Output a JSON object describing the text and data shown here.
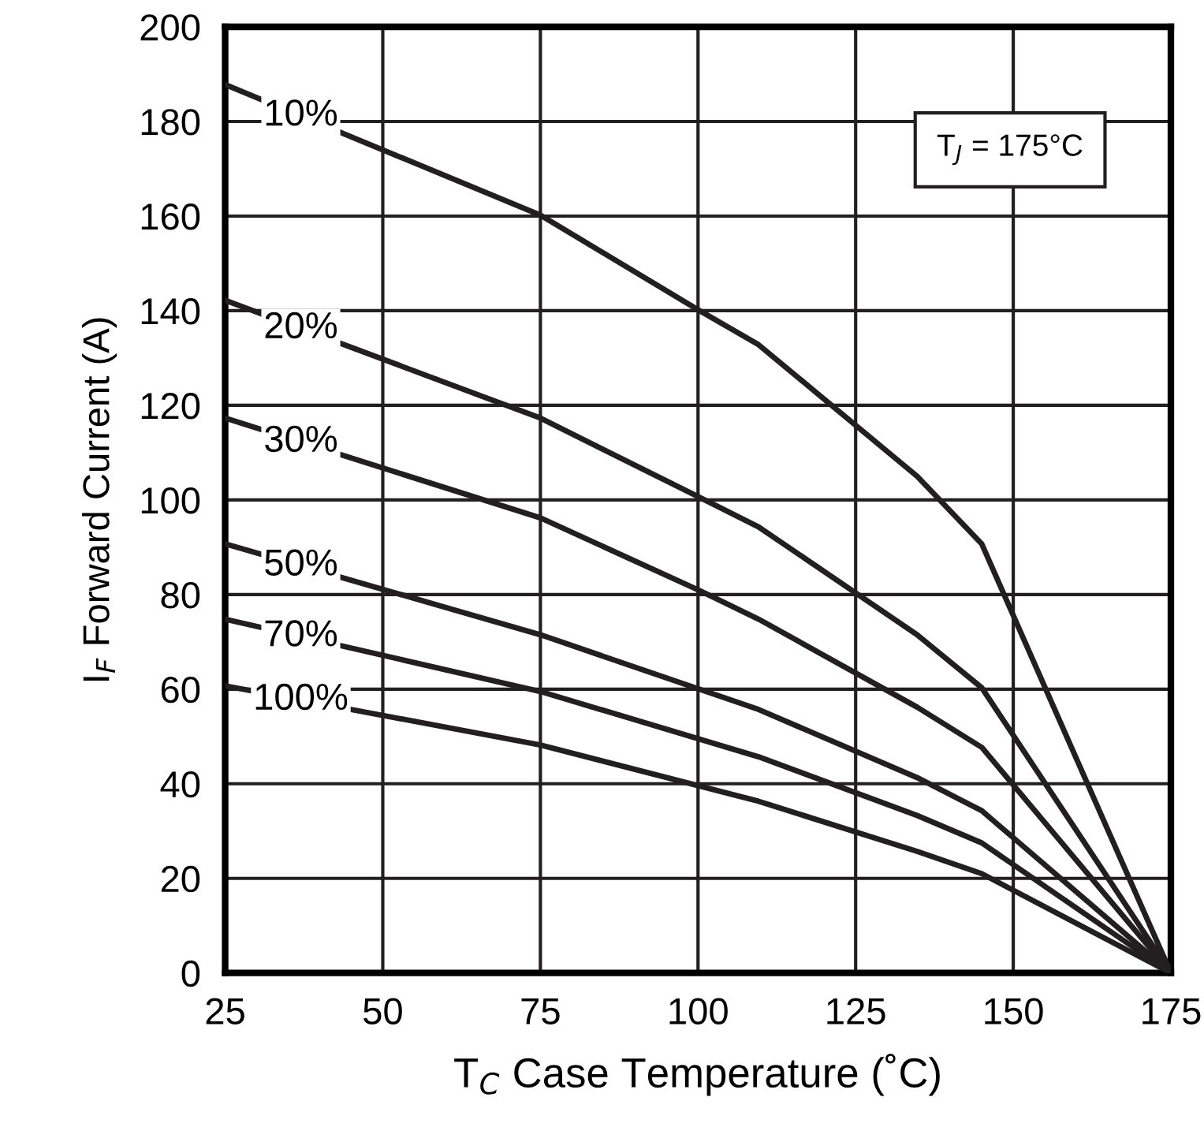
{
  "chart_data": {
    "type": "line",
    "xlabel": "T$_{C}$ Case Temperature (˚C)",
    "ylabel": "I$_{F}$ Forward Current (A)",
    "xlim": [
      25,
      175
    ],
    "xticks": [
      25,
      50,
      75,
      100,
      125,
      150,
      175
    ],
    "ylim": [
      0,
      200
    ],
    "yticks": [
      0,
      20,
      40,
      60,
      80,
      100,
      120,
      140,
      160,
      180,
      200
    ],
    "grid": true,
    "legend": false,
    "marker": "none",
    "line_style": "solid",
    "annotations": [
      "T$_{J}$ = 175°C"
    ],
    "series": [
      {
        "name": "10%",
        "color": "#231f20",
        "x": [
          25,
          75,
          100,
          109.6,
          134.75,
          145,
          175
        ],
        "values": [
          187.8,
          160.2,
          140.2,
          132.8,
          105,
          90.7,
          0
        ]
      },
      {
        "name": "20%",
        "color": "#231f20",
        "x": [
          25,
          75,
          100,
          109.6,
          134.75,
          145,
          175
        ],
        "values": [
          142.2,
          117.3,
          100.7,
          94.3,
          71.5,
          60.3,
          0
        ]
      },
      {
        "name": "30%",
        "color": "#231f20",
        "x": [
          25,
          75,
          100,
          109.6,
          134.75,
          145,
          175
        ],
        "values": [
          117.3,
          96.2,
          81,
          74.8,
          56.2,
          47.7,
          0
        ]
      },
      {
        "name": "50%",
        "color": "#231f20",
        "x": [
          25,
          75,
          109.6,
          134.75,
          145,
          175
        ],
        "values": [
          90.7,
          71.5,
          55.7,
          41.3,
          34.3,
          0
        ]
      },
      {
        "name": "70%",
        "color": "#231f20",
        "x": [
          25,
          75,
          109.6,
          134.75,
          145,
          175
        ],
        "values": [
          74.8,
          59.5,
          45.7,
          33.3,
          27.5,
          0
        ]
      },
      {
        "name": "100%",
        "color": "#231f20",
        "x": [
          25,
          75,
          109.6,
          134.75,
          145,
          175
        ],
        "values": [
          60.7,
          48.2,
          36.3,
          25.7,
          21,
          0
        ]
      }
    ]
  }
}
